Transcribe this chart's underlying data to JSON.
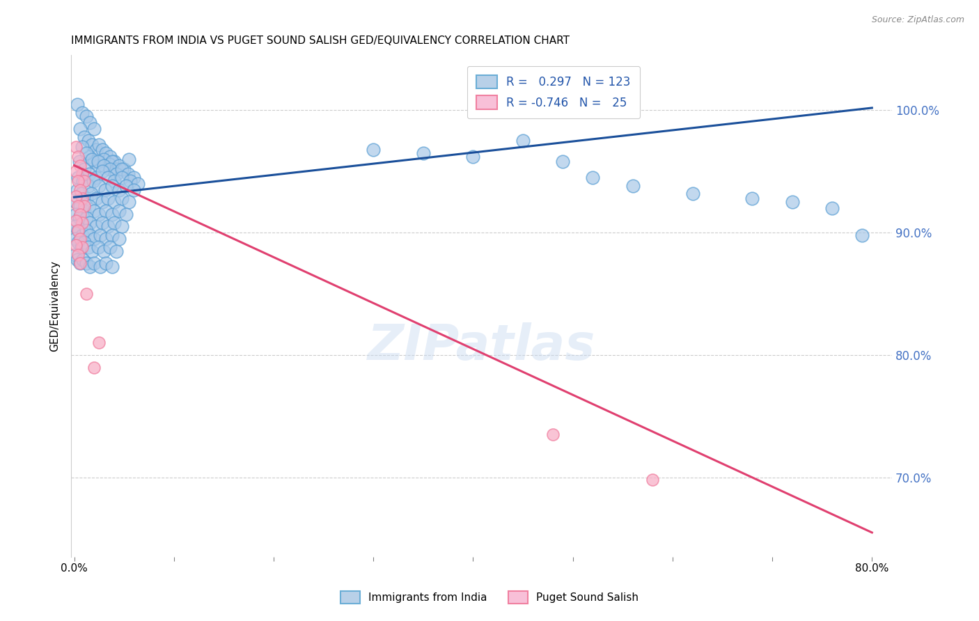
{
  "title": "IMMIGRANTS FROM INDIA VS PUGET SOUND SALISH GED/EQUIVALENCY CORRELATION CHART",
  "source": "Source: ZipAtlas.com",
  "ylabel": "GED/Equivalency",
  "ytick_labels": [
    "100.0%",
    "90.0%",
    "80.0%",
    "70.0%"
  ],
  "ytick_values": [
    1.0,
    0.9,
    0.8,
    0.7
  ],
  "xlim": [
    -0.003,
    0.82
  ],
  "ylim": [
    0.635,
    1.045
  ],
  "blue_line": [
    0.0,
    0.929,
    0.8,
    1.002
  ],
  "pink_line": [
    0.0,
    0.955,
    0.8,
    0.655
  ],
  "blue_color_fill": "#a8c8e8",
  "blue_color_edge": "#5a9fd4",
  "pink_color_fill": "#f8b0c8",
  "pink_color_edge": "#f080a0",
  "line_blue": "#1a4f9a",
  "line_pink": "#e04070",
  "watermark": "ZIPatlas",
  "blue_scatter": [
    [
      0.003,
      1.005
    ],
    [
      0.008,
      0.998
    ],
    [
      0.012,
      0.995
    ],
    [
      0.016,
      0.99
    ],
    [
      0.02,
      0.985
    ],
    [
      0.006,
      0.985
    ],
    [
      0.01,
      0.978
    ],
    [
      0.014,
      0.975
    ],
    [
      0.018,
      0.972
    ],
    [
      0.022,
      0.968
    ],
    [
      0.025,
      0.972
    ],
    [
      0.028,
      0.968
    ],
    [
      0.032,
      0.965
    ],
    [
      0.036,
      0.962
    ],
    [
      0.04,
      0.958
    ],
    [
      0.015,
      0.962
    ],
    [
      0.02,
      0.958
    ],
    [
      0.024,
      0.955
    ],
    [
      0.03,
      0.96
    ],
    [
      0.035,
      0.956
    ],
    [
      0.038,
      0.958
    ],
    [
      0.042,
      0.952
    ],
    [
      0.045,
      0.955
    ],
    [
      0.05,
      0.952
    ],
    [
      0.055,
      0.96
    ],
    [
      0.008,
      0.97
    ],
    [
      0.012,
      0.965
    ],
    [
      0.018,
      0.96
    ],
    [
      0.024,
      0.958
    ],
    [
      0.03,
      0.955
    ],
    [
      0.036,
      0.952
    ],
    [
      0.042,
      0.948
    ],
    [
      0.048,
      0.952
    ],
    [
      0.054,
      0.948
    ],
    [
      0.06,
      0.945
    ],
    [
      0.005,
      0.958
    ],
    [
      0.01,
      0.952
    ],
    [
      0.015,
      0.948
    ],
    [
      0.022,
      0.945
    ],
    [
      0.028,
      0.95
    ],
    [
      0.034,
      0.945
    ],
    [
      0.04,
      0.942
    ],
    [
      0.048,
      0.945
    ],
    [
      0.056,
      0.942
    ],
    [
      0.064,
      0.94
    ],
    [
      0.004,
      0.945
    ],
    [
      0.009,
      0.942
    ],
    [
      0.014,
      0.938
    ],
    [
      0.019,
      0.942
    ],
    [
      0.025,
      0.938
    ],
    [
      0.031,
      0.935
    ],
    [
      0.038,
      0.938
    ],
    [
      0.045,
      0.935
    ],
    [
      0.052,
      0.938
    ],
    [
      0.06,
      0.935
    ],
    [
      0.003,
      0.935
    ],
    [
      0.007,
      0.932
    ],
    [
      0.012,
      0.928
    ],
    [
      0.017,
      0.932
    ],
    [
      0.022,
      0.928
    ],
    [
      0.028,
      0.925
    ],
    [
      0.034,
      0.928
    ],
    [
      0.04,
      0.925
    ],
    [
      0.048,
      0.928
    ],
    [
      0.055,
      0.925
    ],
    [
      0.002,
      0.925
    ],
    [
      0.006,
      0.922
    ],
    [
      0.01,
      0.918
    ],
    [
      0.015,
      0.922
    ],
    [
      0.02,
      0.918
    ],
    [
      0.025,
      0.915
    ],
    [
      0.032,
      0.918
    ],
    [
      0.038,
      0.915
    ],
    [
      0.045,
      0.918
    ],
    [
      0.052,
      0.915
    ],
    [
      0.002,
      0.915
    ],
    [
      0.005,
      0.912
    ],
    [
      0.008,
      0.908
    ],
    [
      0.012,
      0.912
    ],
    [
      0.016,
      0.908
    ],
    [
      0.022,
      0.905
    ],
    [
      0.028,
      0.908
    ],
    [
      0.034,
      0.905
    ],
    [
      0.04,
      0.908
    ],
    [
      0.048,
      0.905
    ],
    [
      0.001,
      0.905
    ],
    [
      0.004,
      0.902
    ],
    [
      0.008,
      0.898
    ],
    [
      0.012,
      0.902
    ],
    [
      0.016,
      0.898
    ],
    [
      0.02,
      0.895
    ],
    [
      0.026,
      0.898
    ],
    [
      0.032,
      0.895
    ],
    [
      0.038,
      0.898
    ],
    [
      0.045,
      0.895
    ],
    [
      0.001,
      0.895
    ],
    [
      0.004,
      0.892
    ],
    [
      0.007,
      0.888
    ],
    [
      0.01,
      0.892
    ],
    [
      0.014,
      0.888
    ],
    [
      0.018,
      0.885
    ],
    [
      0.024,
      0.888
    ],
    [
      0.03,
      0.885
    ],
    [
      0.036,
      0.888
    ],
    [
      0.042,
      0.885
    ],
    [
      0.001,
      0.882
    ],
    [
      0.003,
      0.878
    ],
    [
      0.006,
      0.875
    ],
    [
      0.009,
      0.878
    ],
    [
      0.012,
      0.875
    ],
    [
      0.016,
      0.872
    ],
    [
      0.02,
      0.875
    ],
    [
      0.026,
      0.872
    ],
    [
      0.032,
      0.875
    ],
    [
      0.038,
      0.872
    ],
    [
      0.3,
      0.968
    ],
    [
      0.35,
      0.965
    ],
    [
      0.4,
      0.962
    ],
    [
      0.45,
      0.975
    ],
    [
      0.49,
      0.958
    ],
    [
      0.52,
      0.945
    ],
    [
      0.56,
      0.938
    ],
    [
      0.62,
      0.932
    ],
    [
      0.68,
      0.928
    ],
    [
      0.72,
      0.925
    ],
    [
      0.76,
      0.92
    ],
    [
      0.79,
      0.898
    ]
  ],
  "pink_scatter": [
    [
      0.002,
      0.97
    ],
    [
      0.004,
      0.962
    ],
    [
      0.006,
      0.955
    ],
    [
      0.008,
      0.948
    ],
    [
      0.01,
      0.942
    ],
    [
      0.002,
      0.95
    ],
    [
      0.004,
      0.942
    ],
    [
      0.006,
      0.935
    ],
    [
      0.008,
      0.928
    ],
    [
      0.01,
      0.922
    ],
    [
      0.002,
      0.93
    ],
    [
      0.004,
      0.922
    ],
    [
      0.006,
      0.915
    ],
    [
      0.008,
      0.908
    ],
    [
      0.002,
      0.91
    ],
    [
      0.004,
      0.902
    ],
    [
      0.006,
      0.895
    ],
    [
      0.008,
      0.888
    ],
    [
      0.002,
      0.89
    ],
    [
      0.004,
      0.882
    ],
    [
      0.006,
      0.875
    ],
    [
      0.012,
      0.85
    ],
    [
      0.025,
      0.81
    ],
    [
      0.02,
      0.79
    ],
    [
      0.48,
      0.735
    ],
    [
      0.58,
      0.698
    ]
  ]
}
